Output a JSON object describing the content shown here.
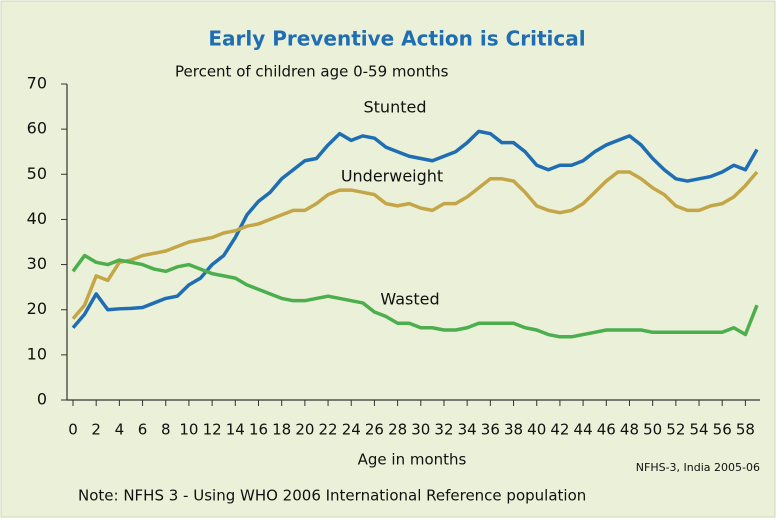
{
  "chart_data": {
    "type": "line",
    "title": "Early Preventive Action is Critical",
    "subtitle": "Percent of children age 0-59 months",
    "xlabel": "Age in months",
    "source": "NFHS-3, India 2005-06",
    "note": "Note: NFHS 3 - Using WHO 2006 International Reference population",
    "x": [
      0,
      1,
      2,
      3,
      4,
      5,
      6,
      7,
      8,
      9,
      10,
      11,
      12,
      13,
      14,
      15,
      16,
      17,
      18,
      19,
      20,
      21,
      22,
      23,
      24,
      25,
      26,
      27,
      28,
      29,
      30,
      31,
      32,
      33,
      34,
      35,
      36,
      37,
      38,
      39,
      40,
      41,
      42,
      43,
      44,
      45,
      46,
      47,
      48,
      49,
      50,
      51,
      52,
      53,
      54,
      55,
      56,
      57,
      58,
      59
    ],
    "xlim": [
      0,
      59
    ],
    "xticks": [
      0,
      2,
      4,
      6,
      8,
      10,
      12,
      14,
      16,
      18,
      20,
      22,
      24,
      26,
      28,
      30,
      32,
      34,
      36,
      38,
      40,
      42,
      44,
      46,
      48,
      50,
      52,
      54,
      56,
      58
    ],
    "ylim": [
      0,
      70
    ],
    "yticks": [
      0,
      10,
      20,
      30,
      40,
      50,
      60,
      70
    ],
    "series": [
      {
        "name": "Stunted",
        "color": "#1f6db3",
        "values": [
          16,
          19,
          23.5,
          20,
          20.2,
          20.3,
          20.5,
          21.5,
          22.5,
          23,
          25.5,
          27,
          30,
          32,
          36,
          41,
          44,
          46,
          49,
          51,
          53,
          53.5,
          56.5,
          59,
          57.5,
          58.5,
          58,
          56,
          55,
          54,
          53.5,
          53,
          54,
          55,
          57,
          59.5,
          59,
          57,
          57,
          55,
          52,
          51,
          52,
          52,
          53,
          55,
          56.5,
          57.5,
          58.5,
          56.5,
          53.5,
          51,
          49,
          48.5,
          49,
          49.5,
          50.5,
          52,
          51,
          55.5
        ]
      },
      {
        "name": "Underweight",
        "color": "#c4a648",
        "values": [
          18,
          21,
          27.5,
          26.5,
          30.5,
          31,
          32,
          32.5,
          33,
          34,
          35,
          35.5,
          36,
          37,
          37.5,
          38.5,
          39,
          40,
          41,
          42,
          42,
          43.5,
          45.5,
          46.5,
          46.5,
          46,
          45.5,
          43.5,
          43,
          43.5,
          42.5,
          42,
          43.5,
          43.5,
          45,
          47,
          49,
          49,
          48.5,
          46,
          43,
          42,
          41.5,
          42,
          43.5,
          46,
          48.5,
          50.5,
          50.5,
          49,
          47,
          45.5,
          43,
          42,
          42,
          43,
          43.5,
          45,
          47.5,
          50.5
        ]
      },
      {
        "name": "Wasted",
        "color": "#4cae4c",
        "values": [
          28.5,
          32,
          30.5,
          30,
          31,
          30.5,
          30,
          29,
          28.5,
          29.5,
          30,
          29,
          28,
          27.5,
          27,
          25.5,
          24.5,
          23.5,
          22.5,
          22,
          22,
          22.5,
          23,
          22.5,
          22,
          21.5,
          19.5,
          18.5,
          17,
          17,
          16,
          16,
          15.5,
          15.5,
          16,
          17,
          17,
          17,
          17,
          16,
          15.5,
          14.5,
          14,
          14,
          14.5,
          15,
          15.5,
          15.5,
          15.5,
          15.5,
          15,
          15,
          15,
          15,
          15,
          15,
          15,
          16,
          14.5,
          21
        ]
      }
    ]
  }
}
